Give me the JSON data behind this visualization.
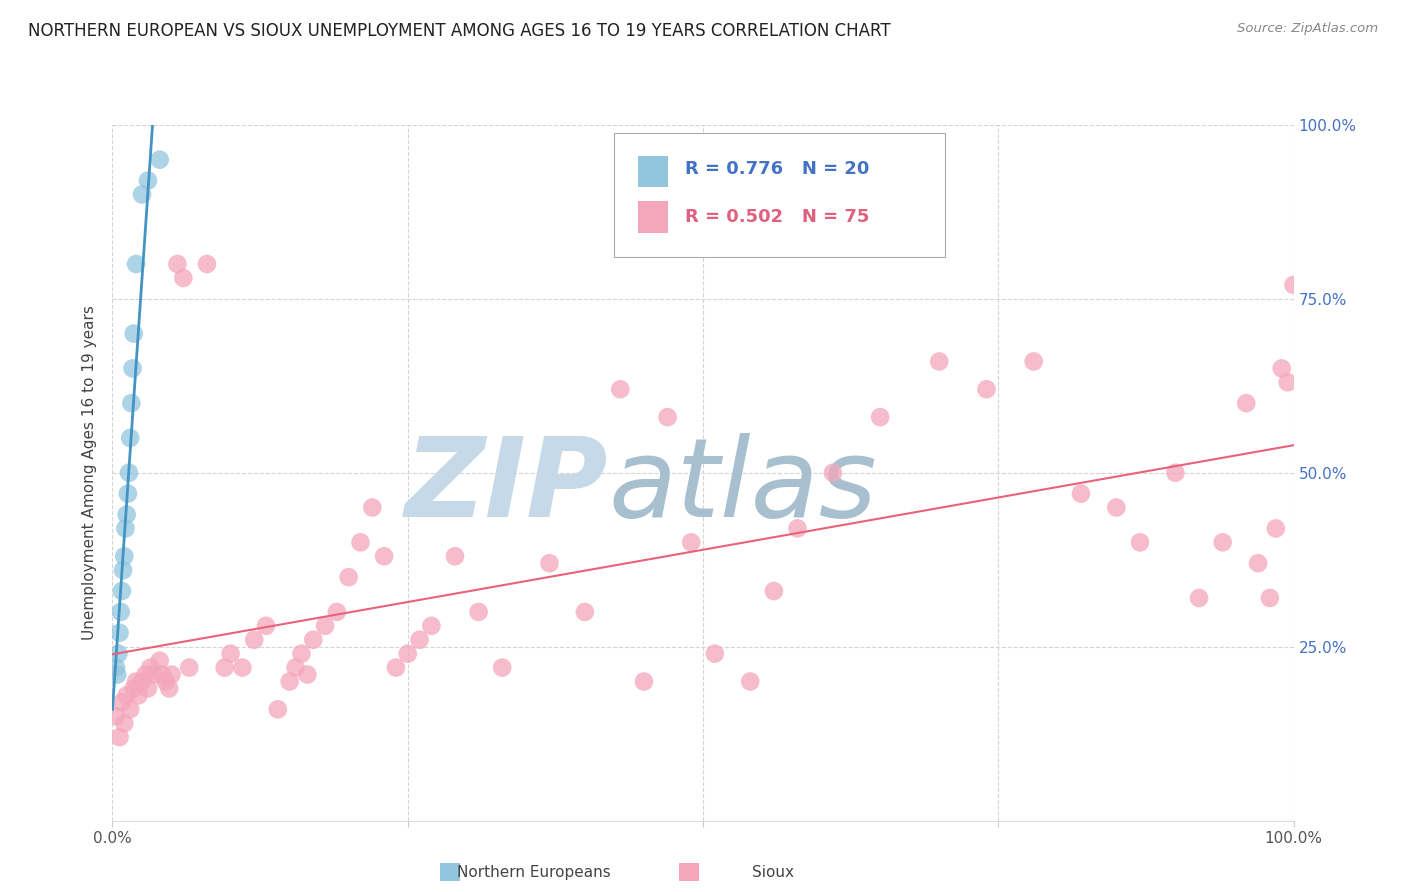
{
  "title": "NORTHERN EUROPEAN VS SIOUX UNEMPLOYMENT AMONG AGES 16 TO 19 YEARS CORRELATION CHART",
  "source": "Source: ZipAtlas.com",
  "ylabel": "Unemployment Among Ages 16 to 19 years",
  "blue_label": "Northern Europeans",
  "pink_label": "Sioux",
  "blue_R": "0.776",
  "blue_N": "20",
  "pink_R": "0.502",
  "pink_N": "75",
  "blue_color": "#92c5de",
  "pink_color": "#f4a6bb",
  "blue_line_color": "#4393c3",
  "pink_line_color": "#e8637a",
  "background_color": "#ffffff",
  "blue_x": [
    0.003,
    0.004,
    0.005,
    0.006,
    0.007,
    0.008,
    0.009,
    0.01,
    0.011,
    0.012,
    0.013,
    0.014,
    0.015,
    0.016,
    0.017,
    0.018,
    0.02,
    0.025,
    0.03,
    0.04
  ],
  "blue_y": [
    0.22,
    0.21,
    0.24,
    0.27,
    0.3,
    0.33,
    0.36,
    0.38,
    0.42,
    0.44,
    0.47,
    0.5,
    0.55,
    0.6,
    0.65,
    0.7,
    0.8,
    0.9,
    0.92,
    0.95
  ],
  "pink_x": [
    0.003,
    0.006,
    0.008,
    0.01,
    0.012,
    0.015,
    0.018,
    0.02,
    0.022,
    0.025,
    0.028,
    0.03,
    0.032,
    0.035,
    0.04,
    0.042,
    0.045,
    0.048,
    0.05,
    0.055,
    0.06,
    0.065,
    0.08,
    0.095,
    0.1,
    0.11,
    0.12,
    0.13,
    0.14,
    0.15,
    0.155,
    0.16,
    0.165,
    0.17,
    0.18,
    0.19,
    0.2,
    0.21,
    0.22,
    0.23,
    0.24,
    0.25,
    0.26,
    0.27,
    0.29,
    0.31,
    0.33,
    0.37,
    0.43,
    0.47,
    0.49,
    0.51,
    0.54,
    0.56,
    0.58,
    0.61,
    0.65,
    0.7,
    0.74,
    0.78,
    0.82,
    0.85,
    0.87,
    0.9,
    0.92,
    0.94,
    0.96,
    0.97,
    0.98,
    0.985,
    0.99,
    0.995,
    1.0,
    0.4,
    0.45
  ],
  "pink_y": [
    0.15,
    0.12,
    0.17,
    0.14,
    0.18,
    0.16,
    0.19,
    0.2,
    0.18,
    0.2,
    0.21,
    0.19,
    0.22,
    0.21,
    0.23,
    0.21,
    0.2,
    0.19,
    0.21,
    0.8,
    0.78,
    0.22,
    0.8,
    0.22,
    0.24,
    0.22,
    0.26,
    0.28,
    0.16,
    0.2,
    0.22,
    0.24,
    0.21,
    0.26,
    0.28,
    0.3,
    0.35,
    0.4,
    0.45,
    0.38,
    0.22,
    0.24,
    0.26,
    0.28,
    0.38,
    0.3,
    0.22,
    0.37,
    0.62,
    0.58,
    0.4,
    0.24,
    0.2,
    0.33,
    0.42,
    0.5,
    0.58,
    0.66,
    0.62,
    0.66,
    0.47,
    0.45,
    0.4,
    0.5,
    0.32,
    0.4,
    0.6,
    0.37,
    0.32,
    0.42,
    0.65,
    0.63,
    0.77,
    0.3,
    0.2
  ],
  "grid_color": "#d0d0d0",
  "watermark_zip_color": "#c5d9e8",
  "watermark_atlas_color": "#a8bfcf"
}
